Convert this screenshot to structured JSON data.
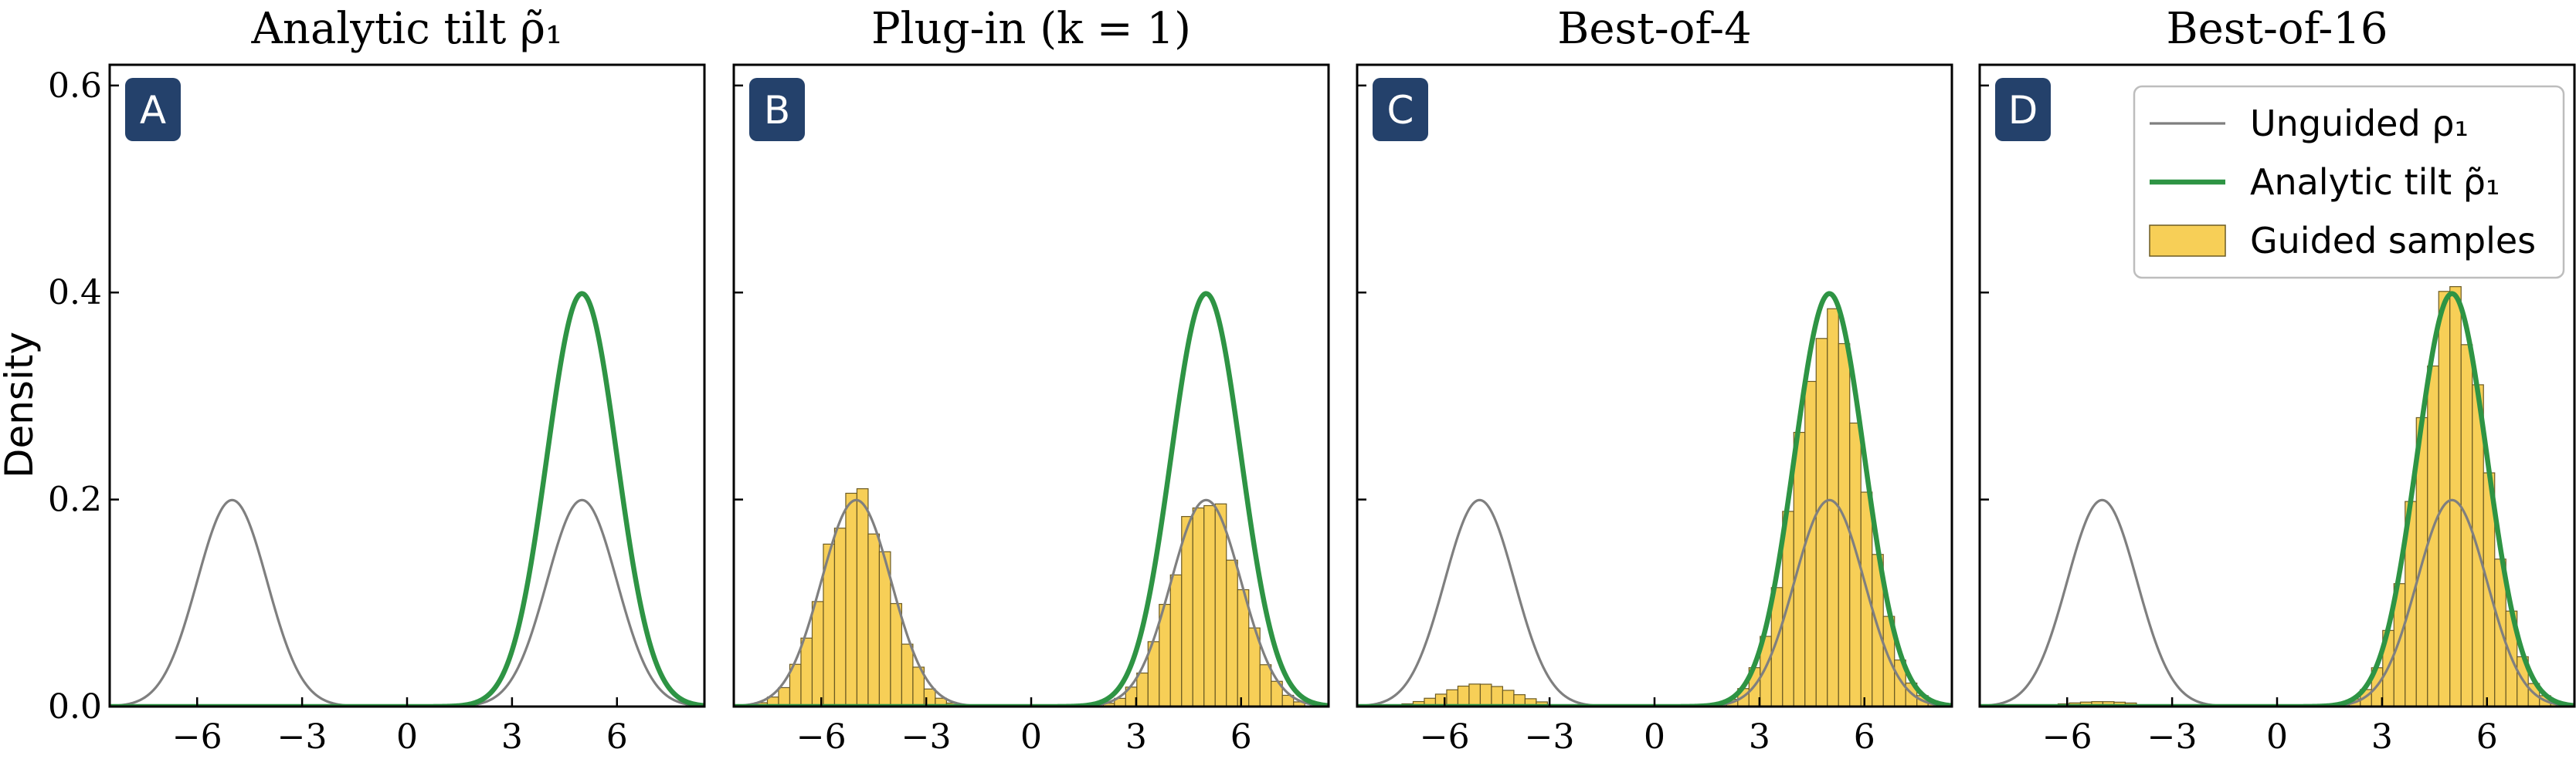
{
  "colors": {
    "unguided": "#7f7f7f",
    "tilt": "#2e9444",
    "hist_fill": "#f7cf57",
    "hist_edge": "#6b5a23",
    "badge": "#24416b",
    "frame": "#000000"
  },
  "ylabel": "Density",
  "legend": {
    "placement": "top-right of panel D",
    "entries": [
      {
        "label": "Unguided ρ₁",
        "style": "line-gray"
      },
      {
        "label": "Analytic tilt ρ̃₁",
        "style": "line-green"
      },
      {
        "label": "Guided samples",
        "style": "bar-yellow"
      }
    ]
  },
  "chart_data": [
    {
      "type": "line",
      "badge": "A",
      "title": "Analytic tilt ρ̃₁",
      "xlim": [
        -8.5,
        8.5
      ],
      "ylim": [
        0,
        0.62
      ],
      "xticks": [
        -6,
        -3,
        0,
        3,
        6
      ],
      "xtick_labels": [
        "−6",
        "−3",
        "0",
        "3",
        "6"
      ],
      "yticks": [
        0.0,
        0.2,
        0.4,
        0.6
      ],
      "ytick_labels": [
        "0.0",
        "0.2",
        "0.4",
        "0.6"
      ],
      "curves": {
        "unguided": {
          "modes": [
            -5,
            5
          ],
          "sigma": 1,
          "weights": [
            0.5,
            0.5
          ]
        },
        "tilt": {
          "modes": [
            5
          ],
          "sigma": 1,
          "weights": [
            1.0
          ]
        }
      },
      "histogram": null
    },
    {
      "type": "line",
      "badge": "B",
      "title": "Plug-in (k = 1)",
      "xlim": [
        -8.5,
        8.5
      ],
      "ylim": [
        0,
        0.62
      ],
      "xticks": [
        -6,
        -3,
        0,
        3,
        6
      ],
      "xtick_labels": [
        "−6",
        "−3",
        "0",
        "3",
        "6"
      ],
      "yticks": [
        0.0,
        0.2,
        0.4,
        0.6
      ],
      "ytick_labels": [
        "",
        "",
        "",
        ""
      ],
      "curves": {
        "unguided": {
          "modes": [
            -5,
            5
          ],
          "sigma": 1,
          "weights": [
            0.5,
            0.5
          ]
        },
        "tilt": {
          "modes": [
            5
          ],
          "sigma": 1,
          "weights": [
            1.0
          ]
        }
      },
      "histogram": {
        "bin_width": 0.32,
        "overrides": {
          "-4.96": 0.235
        }
      }
    },
    {
      "type": "line",
      "badge": "C",
      "title": "Best-of-4",
      "xlim": [
        -8.5,
        8.5
      ],
      "ylim": [
        0,
        0.62
      ],
      "xticks": [
        -6,
        -3,
        0,
        3,
        6
      ],
      "xtick_labels": [
        "−6",
        "−3",
        "0",
        "3",
        "6"
      ],
      "yticks": [
        0.0,
        0.2,
        0.4,
        0.6
      ],
      "ytick_labels": [
        "",
        "",
        "",
        ""
      ],
      "curves": {
        "unguided": {
          "modes": [
            -5,
            5
          ],
          "sigma": 1,
          "weights": [
            0.5,
            0.5
          ]
        },
        "tilt": {
          "modes": [
            5
          ],
          "sigma": 1,
          "weights": [
            1.0
          ]
        }
      },
      "histogram": {
        "bin_width": 0.32,
        "overrides": {}
      }
    },
    {
      "type": "line",
      "badge": "D",
      "title": "Best-of-16",
      "xlim": [
        -8.5,
        8.5
      ],
      "ylim": [
        0,
        0.62
      ],
      "xticks": [
        -6,
        -3,
        0,
        3,
        6
      ],
      "xtick_labels": [
        "−6",
        "−3",
        "0",
        "3",
        "6"
      ],
      "yticks": [
        0.0,
        0.2,
        0.4,
        0.6
      ],
      "ytick_labels": [
        "",
        "",
        "",
        ""
      ],
      "curves": {
        "unguided": {
          "modes": [
            -5,
            5
          ],
          "sigma": 1,
          "weights": [
            0.5,
            0.5
          ]
        },
        "tilt": {
          "modes": [
            5
          ],
          "sigma": 1,
          "weights": [
            1.0
          ]
        }
      },
      "histogram": {
        "bin_width": 0.32,
        "overrides": {}
      }
    }
  ]
}
